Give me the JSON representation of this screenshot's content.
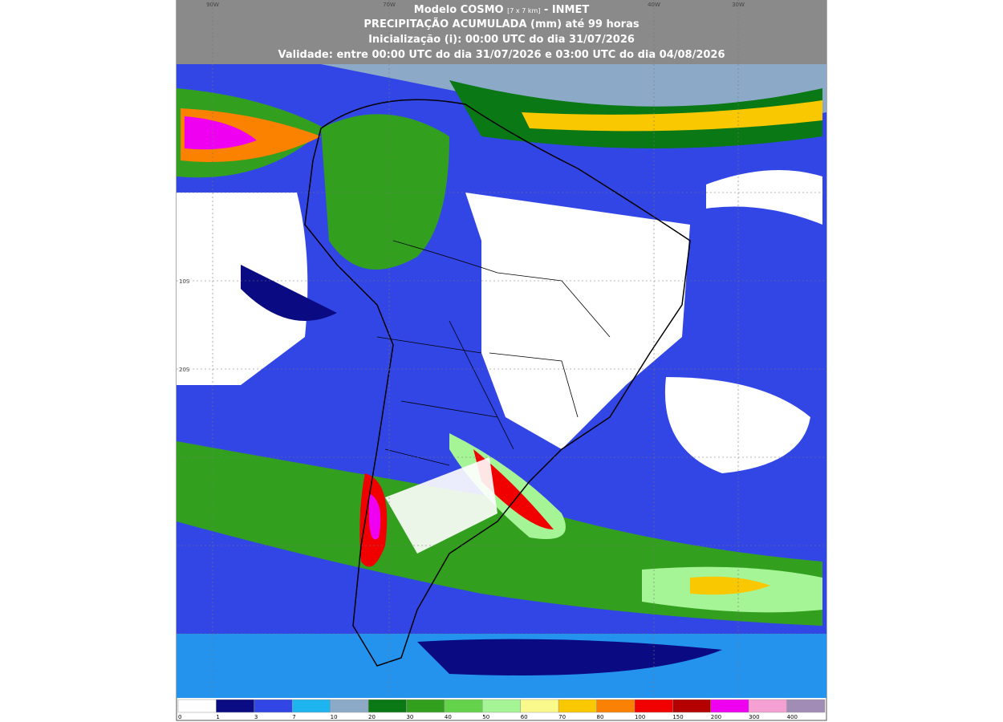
{
  "header": {
    "lines": [
      "Modelo COSMO",
      "[7 x 7 km]",
      "- INMET",
      "PRECIPITAÇÃO ACUMULADA (mm) até 99 horas",
      "Inicialização (i): 00:00 UTC do dia 31/07/2026",
      "Validade: entre 00:00 UTC do dia 31/07/2026 e 03:00 UTC do dia 04/08/2026"
    ]
  },
  "grid_labels": {
    "top": [
      "90W",
      "70W",
      "40W",
      "30W"
    ],
    "left": [
      "10S",
      "20S"
    ]
  },
  "legend": {
    "items": [
      {
        "label": "0",
        "color": "#ffffff"
      },
      {
        "label": "1",
        "color": "#0a0a82"
      },
      {
        "label": "3",
        "color": "#3246e6"
      },
      {
        "label": "7",
        "color": "#1eb4f0"
      },
      {
        "label": "10",
        "color": "#8caac8"
      },
      {
        "label": "20",
        "color": "#0a7814"
      },
      {
        "label": "30",
        "color": "#32a01e"
      },
      {
        "label": "40",
        "color": "#64d24b"
      },
      {
        "label": "50",
        "color": "#a5f596"
      },
      {
        "label": "60",
        "color": "#fafa8c"
      },
      {
        "label": "70",
        "color": "#fac800"
      },
      {
        "label": "80",
        "color": "#fa8200"
      },
      {
        "label": "100",
        "color": "#f00000"
      },
      {
        "label": "150",
        "color": "#b40000"
      },
      {
        "label": "200",
        "color": "#f000f0"
      },
      {
        "label": "300",
        "color": "#f5a0d2"
      },
      {
        "label": "400",
        "color": "#a08cb4"
      }
    ]
  }
}
